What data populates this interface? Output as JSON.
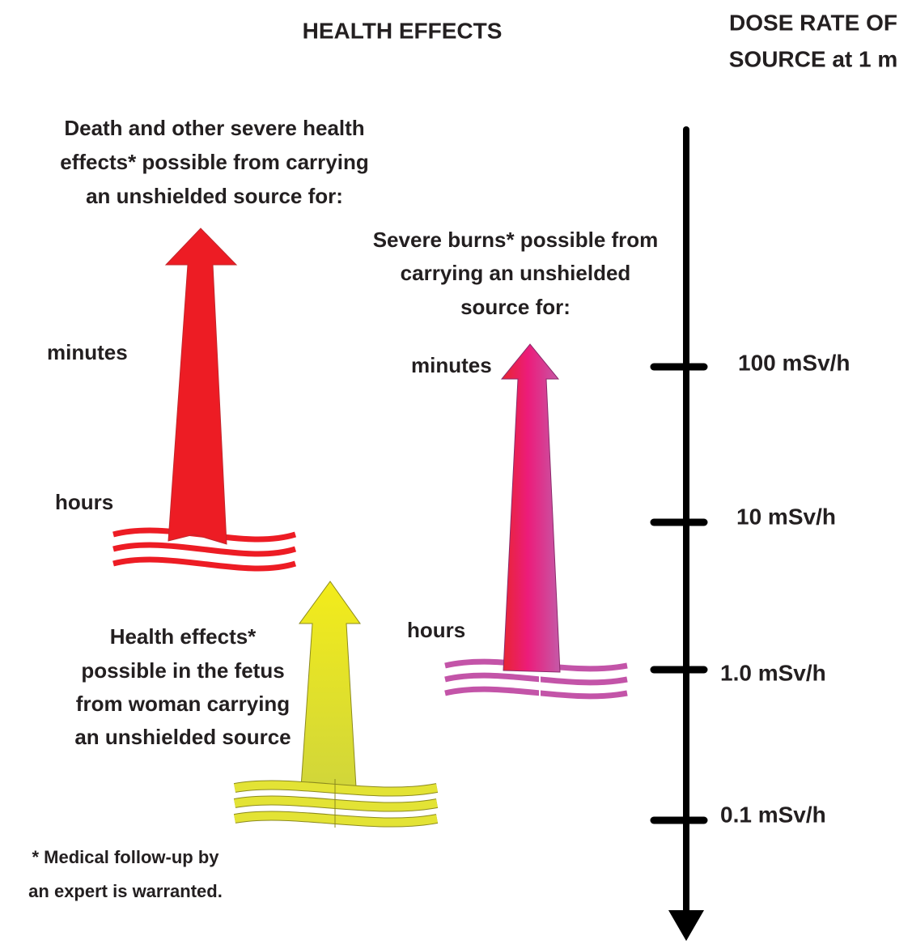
{
  "header": {
    "title": "HEALTH EFFECTS"
  },
  "axis": {
    "title": [
      "DOSE RATE OF",
      "SOURCE at 1 m"
    ],
    "labels": [
      "100 mSv/h",
      "10 mSv/h",
      "1.0 mSv/h",
      "0.1 mSv/h"
    ]
  },
  "death": {
    "description": [
      "Death and other severe health",
      "effects* possible from carrying",
      "an unshielded source for:"
    ],
    "top": "minutes",
    "bottom": "hours"
  },
  "burns": {
    "description": [
      "Severe burns* possible from",
      "carrying an unshielded",
      "source for:"
    ],
    "top": "minutes",
    "bottom": "hours"
  },
  "fetus": {
    "description": [
      "Health effects*",
      "possible in the fetus",
      "from woman carrying",
      "an unshielded source"
    ]
  },
  "footnote": [
    "* Medical follow-up by",
    "an expert is warranted."
  ]
}
